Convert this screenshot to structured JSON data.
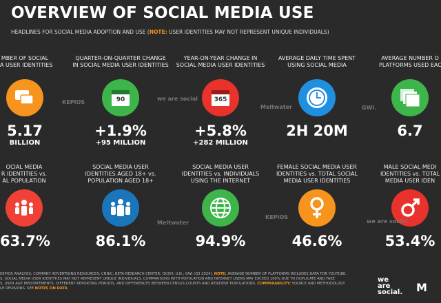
{
  "header": {
    "title": "OVERVIEW OF SOCIAL MEDIA USE",
    "subtitle": "HEADLINES FOR SOCIAL MEDIA ADOPTION AND USE (",
    "subtitle_note": "NOTE:",
    "subtitle_rest": " USER IDENTITIES MAY NOT REPRESENT UNIQUE INDIVIDUALS)"
  },
  "cards": [
    {
      "label": [
        "MBER OF SOCIAL",
        "A USER IDENTITIES"
      ],
      "value": "5.17",
      "sub": "BILLION"
    },
    {
      "label": [
        "QUARTER-ON-QUARTER CHANGE",
        "IN SOCIAL MEDIA USER IDENTITIES"
      ],
      "icon_text": "90",
      "value": "+1.9%",
      "sub": "+95 MILLION"
    },
    {
      "label": [
        "YEAR-ON-YEAR CHANGE IN",
        "SOCIAL MEDIA USER IDENTITIES"
      ],
      "icon_text": "365",
      "value": "+5.8%",
      "sub": "+282 MILLION"
    },
    {
      "label": [
        "AVERAGE DAILY TIME SPENT",
        "USING SOCIAL MEDIA"
      ],
      "value": "2H 20M"
    },
    {
      "label": [
        "AVERAGE NUMBER O",
        "PLATFORMS USED EAC"
      ],
      "value": "6.7"
    },
    {
      "label": [
        "OCIAL MEDIA",
        "R IDENTITIES vs.",
        "AL POPULATION"
      ],
      "value": "63.7%"
    },
    {
      "label": [
        "SOCIAL MEDIA USER",
        "IDENTITIES AGED 18+ vs.",
        "POPULATION AGED 18+"
      ],
      "value": "86.1%"
    },
    {
      "label": [
        "SOCIAL MEDIA USER",
        "IDENTITIES vs. INDIVIDUALS",
        "USING THE INTERNET"
      ],
      "value": "94.9%"
    },
    {
      "label": [
        "FEMALE SOCIAL MEDIA USER",
        "IDENTITIES vs. TOTAL SOCIAL",
        "MEDIA USER IDENTITIES"
      ],
      "value": "46.6%"
    },
    {
      "label": [
        "MALE SOCIAL MEDI",
        "IDENTITIES vs. TOTAL",
        "MEDIA USER IDEN"
      ],
      "value": "53.4%"
    }
  ],
  "watermarks": [
    "KEPIOS",
    "we are social",
    "Meltwater",
    "GWI.",
    "Meltwater",
    "KEPIOS",
    "we are social"
  ],
  "footer": {
    "lines": [
      [
        "KEPIOS ANALYSIS; COMPANY ADVERTISING RESOURCES; CNNIC; BETA RESEARCH CENTER; OCDH; U.N.; GWI (Q3 2024). ",
        "NOTE:",
        " AVERAGE NUMBER OF PLATFORMS INCLUDES DATA FOR YOUTUBE."
      ],
      [
        "S: SOCIAL MEDIA USER IDENTITIES MAY NOT REPRESENT UNIQUE INDIVIDUALS. COMPARISONS WITH POPULATION AND INTERNET USERS MAY EXCEED 100% DUE TO DUPLICATE AND FAKE"
      ],
      [
        "S, USER AGE MISSTATEMENTS, DIFFERENT REPORTING PERIODS, AND DIFFERENCES BETWEEN CENSUS COUNTS AND RESIDENT POPULATIONS. ",
        "COMPARABILITY:",
        " SOURCE AND METHODOLOGY"
      ],
      [
        "LE REVISIONS. SEE ",
        "NOTES ON DATA",
        "."
      ]
    ]
  },
  "logos": {
    "brand": [
      "we",
      "are",
      "social."
    ],
    "partner": "M"
  }
}
